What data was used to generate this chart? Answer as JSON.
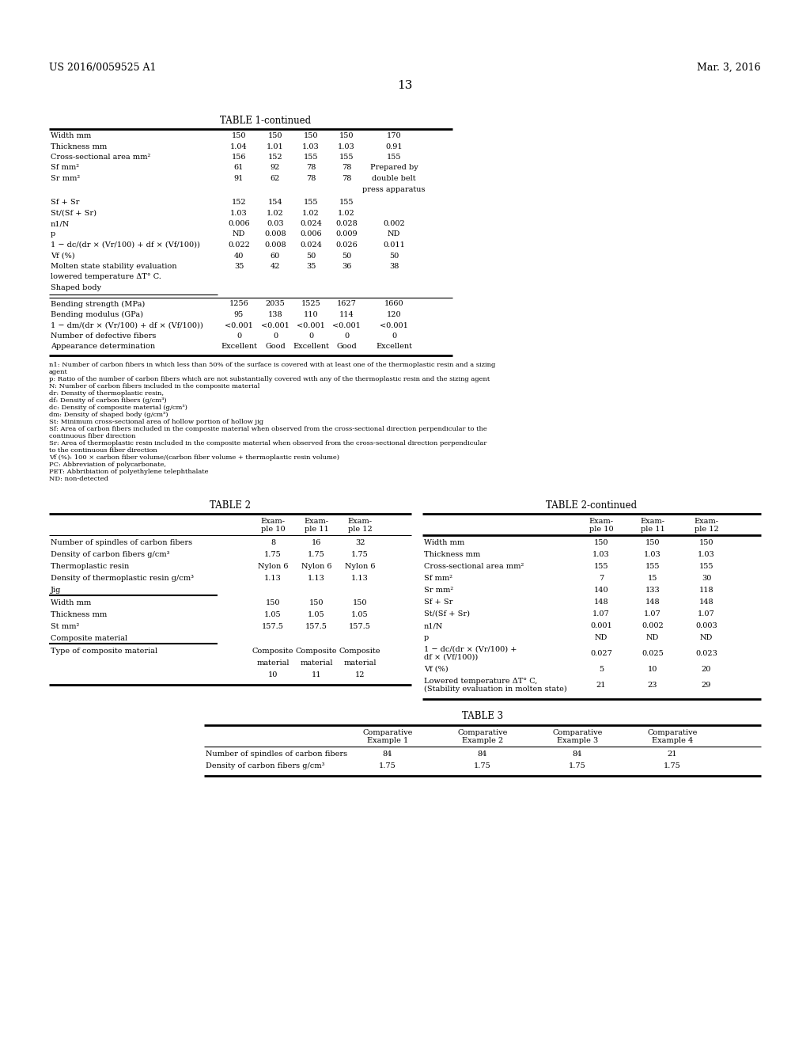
{
  "bg_color": "#ffffff",
  "header_left": "US 2016/0059525 A1",
  "header_right": "Mar. 3, 2016",
  "page_number": "13",
  "table1_title": "TABLE 1-continued",
  "footnotes": [
    "n1: Number of carbon fibers in which less than 50% of the surface is covered with at least one of the thermoplastic resin and a sizing",
    "agent",
    "p: Ratio of the number of carbon fibers which are not substantially covered with any of the thermoplastic resin and the sizing agent",
    "N: Number of carbon fibers included in the composite material",
    "dr: Density of thermoplastic resin,",
    "df: Density of carbon fibers (g/cm³)",
    "dc: Density of composite material (g/cm³)",
    "dm: Density of shaped body (g/cm³)",
    "St: Minimum cross-sectional area of hollow portion of hollow jig",
    "Sf: Area of carbon fibers included in the composite material when observed from the cross-sectional direction perpendicular to the",
    "continuous fiber direction",
    "Sr: Area of thermoplastic resin included in the composite material when observed from the cross-sectional direction perpendicular",
    "to the continuous fiber direction",
    "Vf (%): 100 × carbon fiber volume/(carbon fiber volume + thermoplastic resin volume)",
    "PC: Abbreviation of polycarbonate,",
    "PET: Abbribiation of polyethylene telephthalate",
    "ND: non-detected"
  ],
  "table2_title": "TABLE 2",
  "table2cont_title": "TABLE 2-continued",
  "table3_title": "TABLE 3"
}
